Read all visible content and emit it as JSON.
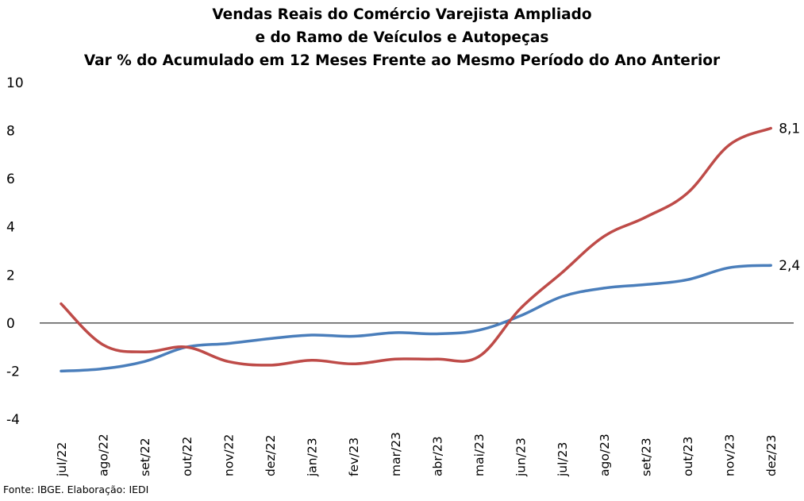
{
  "title_lines": [
    "Vendas Reais do Comércio Varejista Ampliado",
    "e do Ramo de Veículos e Autopeças",
    "Var % do Acumulado em 12 Meses Frente ao Mesmo Período do Ano Anterior"
  ],
  "source": "Fonte: IBGE. Elaboração: IEDI",
  "chart_data": {
    "type": "line",
    "title": "Vendas Reais do Comércio Varejista Ampliado e do Ramo de Veículos e Autopeças — Var % do Acumulado em 12 Meses Frente ao Mesmo Período do Ano Anterior",
    "xlabel": "",
    "ylabel": "",
    "ylim": [
      -4,
      10
    ],
    "yticks": [
      -4,
      -2,
      0,
      2,
      4,
      6,
      8,
      10
    ],
    "grid": false,
    "legend": "none",
    "categories": [
      "jul/22",
      "ago/22",
      "set/22",
      "out/22",
      "nov/22",
      "dez/22",
      "jan/23",
      "fev/23",
      "mar/23",
      "abr/23",
      "mai/23",
      "jun/23",
      "jul/23",
      "ago/23",
      "set/23",
      "out/23",
      "nov/23",
      "dez/23"
    ],
    "series": [
      {
        "color": "#4a7ebb",
        "values": [
          -2.0,
          -1.9,
          -1.6,
          -1.0,
          -0.85,
          -0.65,
          -0.5,
          -0.55,
          -0.4,
          -0.45,
          -0.3,
          0.3,
          1.1,
          1.45,
          1.6,
          1.8,
          2.3,
          2.4
        ],
        "end_label": "2,4"
      },
      {
        "color": "#be4b48",
        "values": [
          0.8,
          -0.9,
          -1.2,
          -1.0,
          -1.6,
          -1.75,
          -1.55,
          -1.7,
          -1.5,
          -1.5,
          -1.4,
          0.6,
          2.1,
          3.6,
          4.4,
          5.4,
          7.4,
          8.1
        ],
        "end_label": "8,1"
      }
    ]
  }
}
